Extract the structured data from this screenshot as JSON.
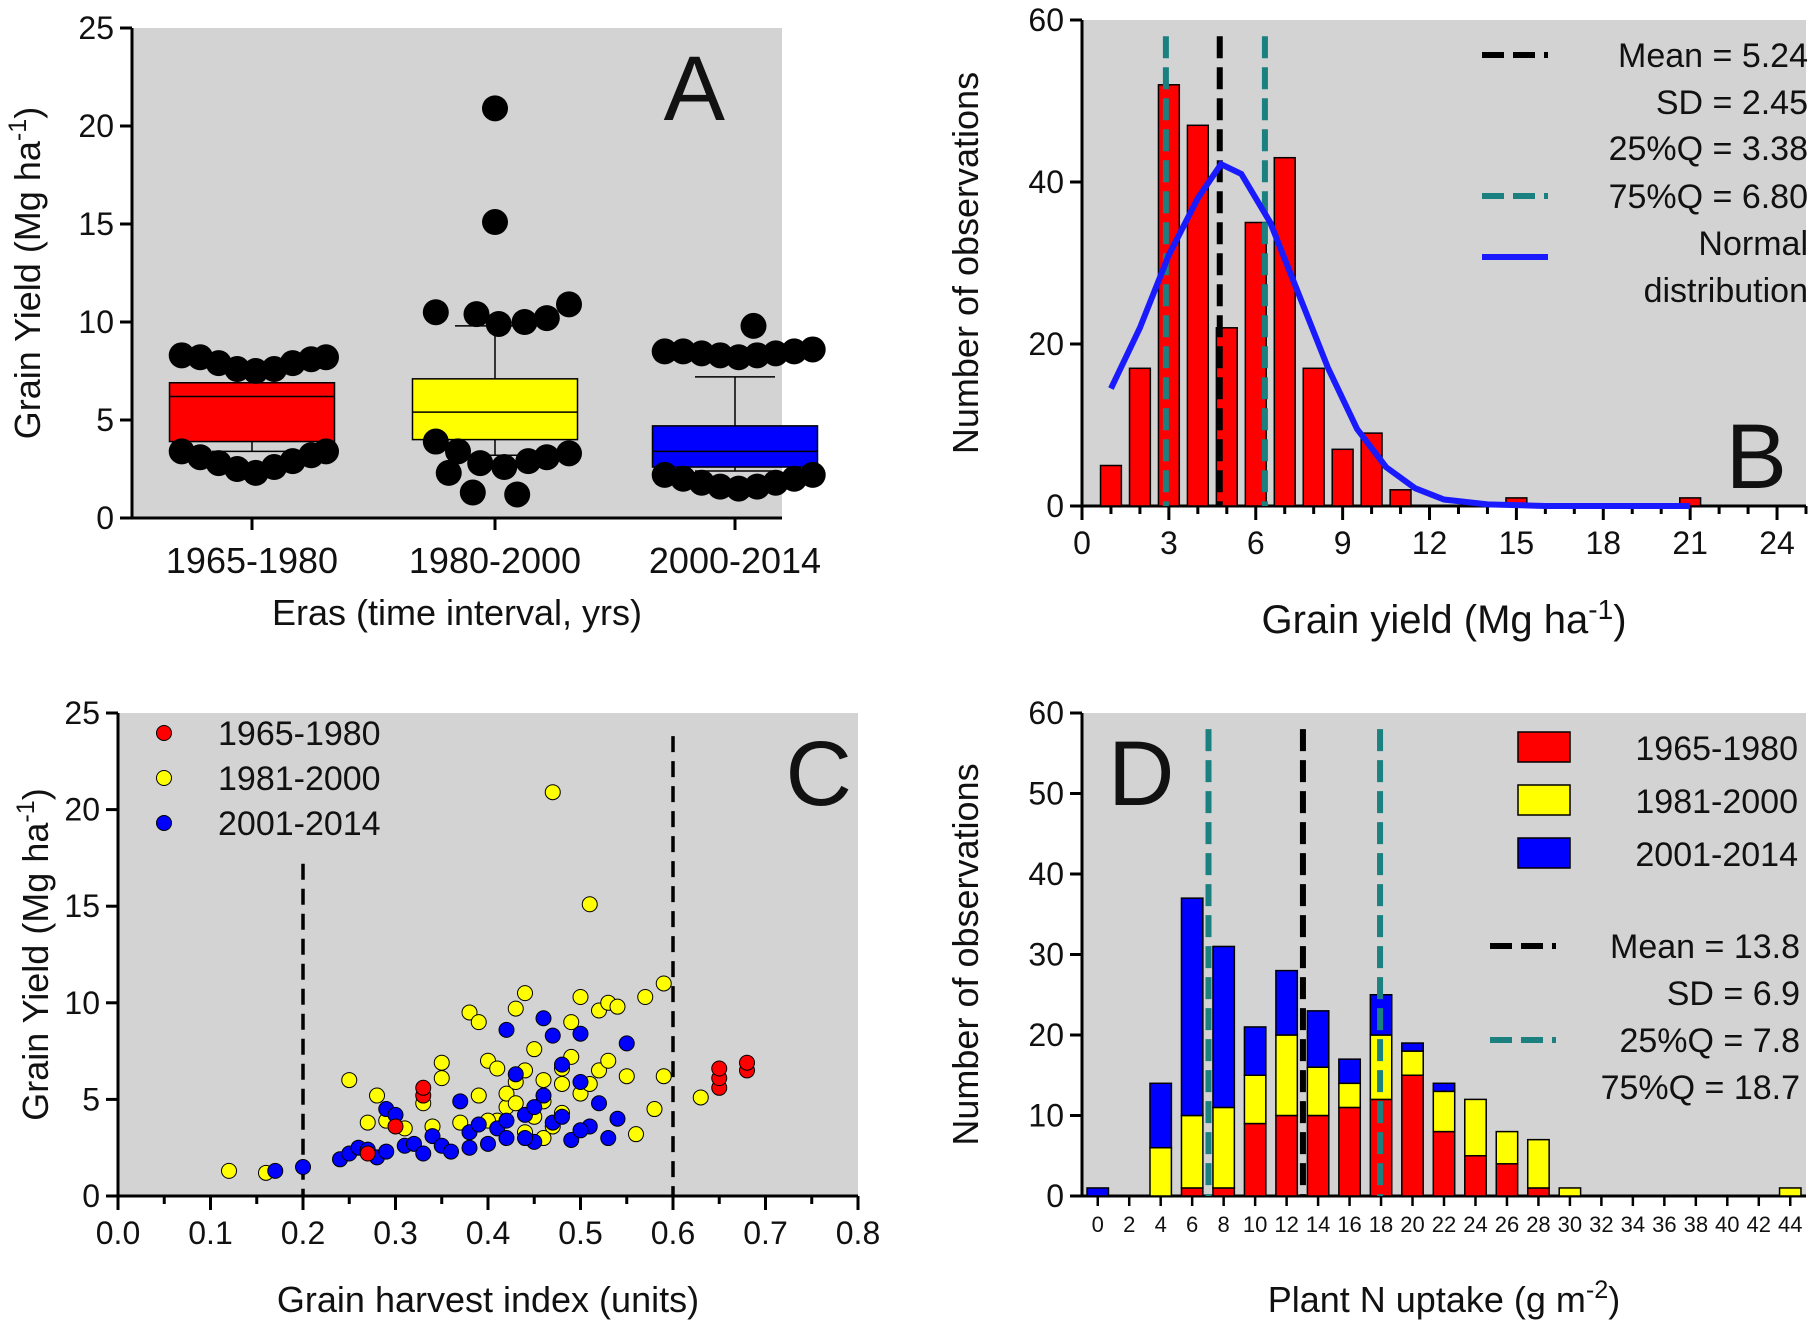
{
  "chart_data": [
    {
      "panel": "A",
      "type": "box",
      "xlabel": "Eras (time interval, yrs)",
      "ylabel": "Grain Yield (Mg ha",
      "ylabel_sup": "-1",
      "ylabel_tail": ")",
      "ylim": [
        0,
        25
      ],
      "yticks": [
        0,
        5,
        10,
        15,
        20,
        25
      ],
      "categories": [
        "1965-1980",
        "1980-2000",
        "2000-2014"
      ],
      "colors": [
        "#ff0000",
        "#ffff00",
        "#0000ff"
      ],
      "boxes": [
        {
          "q1": 3.9,
          "median": 6.2,
          "q3": 6.9,
          "whisker_low": 3.4,
          "whisker_high": 7.5
        },
        {
          "q1": 4.0,
          "median": 5.4,
          "q3": 7.1,
          "whisker_low": 3.2,
          "whisker_high": 9.8
        },
        {
          "q1": 2.6,
          "median": 3.4,
          "q3": 4.7,
          "whisker_low": 2.4,
          "whisker_high": 7.2
        }
      ],
      "outliers": [
        [
          [
            -0.38,
            8.3
          ],
          [
            -0.28,
            8.2
          ],
          [
            -0.18,
            7.9
          ],
          [
            -0.08,
            7.6
          ],
          [
            0.02,
            7.5
          ],
          [
            0.12,
            7.6
          ],
          [
            0.22,
            7.9
          ],
          [
            0.32,
            8.1
          ],
          [
            0.4,
            8.2
          ],
          [
            -0.38,
            3.4
          ],
          [
            -0.28,
            3.1
          ],
          [
            -0.18,
            2.8
          ],
          [
            -0.08,
            2.5
          ],
          [
            0.02,
            2.3
          ],
          [
            0.12,
            2.6
          ],
          [
            0.22,
            2.9
          ],
          [
            0.32,
            3.2
          ],
          [
            0.4,
            3.4
          ]
        ],
        [
          [
            -0.32,
            10.5
          ],
          [
            -0.1,
            10.4
          ],
          [
            0.02,
            9.9
          ],
          [
            0.16,
            10.0
          ],
          [
            0.28,
            10.2
          ],
          [
            0.4,
            10.9
          ],
          [
            0.0,
            20.9
          ],
          [
            0.0,
            15.1
          ],
          [
            -0.32,
            3.9
          ],
          [
            -0.2,
            3.4
          ],
          [
            -0.08,
            2.8
          ],
          [
            0.05,
            2.6
          ],
          [
            0.18,
            2.9
          ],
          [
            0.28,
            3.1
          ],
          [
            0.4,
            3.3
          ],
          [
            -0.25,
            2.3
          ],
          [
            -0.12,
            1.3
          ],
          [
            0.12,
            1.2
          ]
        ],
        [
          [
            -0.38,
            8.5
          ],
          [
            -0.28,
            8.5
          ],
          [
            -0.18,
            8.4
          ],
          [
            -0.08,
            8.3
          ],
          [
            0.02,
            8.2
          ],
          [
            0.12,
            8.3
          ],
          [
            0.22,
            8.4
          ],
          [
            0.32,
            8.5
          ],
          [
            0.42,
            8.6
          ],
          [
            0.1,
            9.8
          ],
          [
            -0.38,
            2.2
          ],
          [
            -0.28,
            2.0
          ],
          [
            -0.18,
            1.8
          ],
          [
            -0.08,
            1.6
          ],
          [
            0.02,
            1.5
          ],
          [
            0.12,
            1.6
          ],
          [
            0.22,
            1.8
          ],
          [
            0.32,
            2.0
          ],
          [
            0.42,
            2.2
          ]
        ]
      ],
      "letter": "A"
    },
    {
      "panel": "B",
      "type": "histogram",
      "xlabel": "Grain yield (Mg ha",
      "xlabel_sup": "-1",
      "xlabel_tail": ")",
      "ylabel": "Number of observations",
      "xlim": [
        0,
        25
      ],
      "ylim": [
        0,
        60
      ],
      "xticks": [
        0,
        3,
        6,
        9,
        12,
        15,
        18,
        21,
        24
      ],
      "yticks": [
        0,
        20,
        40,
        60
      ],
      "bins": [
        [
          1,
          5
        ],
        [
          2,
          17
        ],
        [
          3,
          52
        ],
        [
          4,
          47
        ],
        [
          5,
          22
        ],
        [
          6,
          35
        ],
        [
          7,
          43
        ],
        [
          8,
          17
        ],
        [
          9,
          7
        ],
        [
          10,
          9
        ],
        [
          11,
          2
        ],
        [
          15,
          1
        ],
        [
          21,
          1
        ]
      ],
      "mean": 5.24,
      "q25": 3.38,
      "q75": 6.8,
      "normal_curve": [
        [
          1,
          14.5
        ],
        [
          2,
          22
        ],
        [
          3,
          31
        ],
        [
          4,
          38
        ],
        [
          4.8,
          42.2
        ],
        [
          5.5,
          41
        ],
        [
          6.5,
          35
        ],
        [
          7.5,
          26
        ],
        [
          8.5,
          17
        ],
        [
          9.5,
          9.5
        ],
        [
          10.5,
          4.8
        ],
        [
          11.5,
          2.2
        ],
        [
          12.5,
          0.8
        ],
        [
          14,
          0.2
        ],
        [
          16,
          0
        ],
        [
          21,
          0
        ]
      ],
      "legend": [
        "Mean = 5.24",
        "SD = 2.45",
        "25%Q =  3.38",
        "75%Q =  6.80",
        "Normal",
        "distribution"
      ],
      "letter": "B"
    },
    {
      "panel": "C",
      "type": "scatter",
      "xlabel": "Grain harvest index (units)",
      "ylabel": "Grain Yield (Mg ha",
      "ylabel_sup": "-1",
      "ylabel_tail": ")",
      "xlim": [
        0,
        0.8
      ],
      "ylim": [
        0,
        25
      ],
      "xticks": [
        "0.0",
        "0.1",
        "0.2",
        "0.3",
        "0.4",
        "0.5",
        "0.6",
        "0.7",
        "0.8"
      ],
      "yticks": [
        0,
        5,
        10,
        15,
        20,
        25
      ],
      "vlines": [
        {
          "x": 0.2,
          "ymax": 17.2
        },
        {
          "x": 0.6,
          "ymax": 23.8
        }
      ],
      "series": [
        {
          "name": "1965-1980",
          "color": "#ff0000",
          "points": [
            [
              0.27,
              2.2
            ],
            [
              0.3,
              3.6
            ],
            [
              0.33,
              5.2
            ],
            [
              0.33,
              5.6
            ],
            [
              0.65,
              5.6
            ],
            [
              0.65,
              6.1
            ],
            [
              0.65,
              6.6
            ],
            [
              0.68,
              6.5
            ],
            [
              0.68,
              6.9
            ]
          ]
        },
        {
          "name": "1981-2000",
          "color": "#ffff00",
          "points": [
            [
              0.12,
              1.3
            ],
            [
              0.16,
              1.2
            ],
            [
              0.25,
              6.0
            ],
            [
              0.27,
              3.8
            ],
            [
              0.28,
              5.2
            ],
            [
              0.29,
              3.9
            ],
            [
              0.31,
              3.5
            ],
            [
              0.33,
              4.8
            ],
            [
              0.34,
              3.6
            ],
            [
              0.35,
              6.1
            ],
            [
              0.35,
              6.9
            ],
            [
              0.37,
              3.8
            ],
            [
              0.38,
              9.5
            ],
            [
              0.39,
              9.0
            ],
            [
              0.39,
              5.2
            ],
            [
              0.4,
              7.0
            ],
            [
              0.41,
              3.9
            ],
            [
              0.42,
              4.6
            ],
            [
              0.42,
              5.3
            ],
            [
              0.43,
              9.7
            ],
            [
              0.43,
              4.8
            ],
            [
              0.44,
              6.5
            ],
            [
              0.44,
              10.5
            ],
            [
              0.45,
              4.1
            ],
            [
              0.45,
              7.6
            ],
            [
              0.46,
              6.0
            ],
            [
              0.46,
              4.9
            ],
            [
              0.47,
              3.6
            ],
            [
              0.47,
              20.9
            ],
            [
              0.48,
              5.8
            ],
            [
              0.48,
              6.6
            ],
            [
              0.49,
              7.2
            ],
            [
              0.5,
              10.3
            ],
            [
              0.5,
              5.3
            ],
            [
              0.51,
              15.1
            ],
            [
              0.52,
              9.6
            ],
            [
              0.52,
              6.5
            ],
            [
              0.53,
              10.0
            ],
            [
              0.53,
              7.0
            ],
            [
              0.54,
              9.8
            ],
            [
              0.55,
              6.2
            ],
            [
              0.56,
              3.2
            ],
            [
              0.57,
              10.3
            ],
            [
              0.58,
              4.5
            ],
            [
              0.59,
              11.0
            ],
            [
              0.59,
              6.2
            ],
            [
              0.63,
              5.1
            ],
            [
              0.4,
              3.9
            ],
            [
              0.41,
              6.6
            ],
            [
              0.43,
              5.9
            ],
            [
              0.44,
              3.3
            ],
            [
              0.46,
              3.0
            ],
            [
              0.48,
              4.3
            ],
            [
              0.49,
              9.0
            ],
            [
              0.51,
              5.8
            ]
          ]
        },
        {
          "name": "2001-2014",
          "color": "#0000ff",
          "points": [
            [
              0.17,
              1.3
            ],
            [
              0.2,
              1.5
            ],
            [
              0.24,
              1.9
            ],
            [
              0.25,
              2.2
            ],
            [
              0.26,
              2.5
            ],
            [
              0.27,
              2.4
            ],
            [
              0.28,
              2.0
            ],
            [
              0.29,
              2.3
            ],
            [
              0.29,
              4.5
            ],
            [
              0.3,
              4.2
            ],
            [
              0.31,
              2.6
            ],
            [
              0.32,
              2.7
            ],
            [
              0.33,
              2.2
            ],
            [
              0.34,
              3.1
            ],
            [
              0.35,
              2.6
            ],
            [
              0.36,
              2.3
            ],
            [
              0.37,
              4.9
            ],
            [
              0.38,
              2.5
            ],
            [
              0.38,
              3.3
            ],
            [
              0.39,
              3.7
            ],
            [
              0.4,
              2.7
            ],
            [
              0.41,
              3.5
            ],
            [
              0.42,
              3.0
            ],
            [
              0.42,
              8.6
            ],
            [
              0.43,
              6.3
            ],
            [
              0.44,
              4.2
            ],
            [
              0.45,
              2.8
            ],
            [
              0.46,
              5.2
            ],
            [
              0.46,
              9.2
            ],
            [
              0.47,
              3.8
            ],
            [
              0.47,
              8.3
            ],
            [
              0.48,
              4.1
            ],
            [
              0.48,
              6.8
            ],
            [
              0.49,
              2.9
            ],
            [
              0.5,
              5.9
            ],
            [
              0.5,
              8.4
            ],
            [
              0.51,
              3.6
            ],
            [
              0.52,
              4.8
            ],
            [
              0.53,
              3.0
            ],
            [
              0.54,
              4.0
            ],
            [
              0.55,
              7.9
            ],
            [
              0.42,
              3.9
            ],
            [
              0.44,
              3.0
            ],
            [
              0.45,
              4.6
            ],
            [
              0.5,
              3.4
            ]
          ]
        }
      ],
      "legend": [
        "1965-1980",
        "1981-2000",
        "2001-2014"
      ],
      "letter": "C"
    },
    {
      "panel": "D",
      "type": "stacked-histogram",
      "xlabel": "Plant N uptake (g m",
      "xlabel_sup": "-2",
      "xlabel_tail": ")",
      "ylabel": "Number of observations",
      "xlim": [
        -1,
        45
      ],
      "ylim": [
        0,
        60
      ],
      "xticks": [
        0,
        2,
        4,
        6,
        8,
        10,
        12,
        14,
        16,
        18,
        20,
        22,
        24,
        26,
        28,
        30,
        32,
        34,
        36,
        38,
        40,
        42,
        44
      ],
      "yticks": [
        0,
        10,
        20,
        30,
        40,
        50,
        60
      ],
      "categories": [
        0,
        4,
        6,
        8,
        10,
        12,
        14,
        16,
        18,
        20,
        22,
        24,
        26,
        28,
        30,
        44
      ],
      "series": [
        {
          "name": "1965-1980",
          "color": "#ff0000",
          "values": [
            0,
            0,
            1,
            1,
            9,
            10,
            10,
            11,
            12,
            15,
            8,
            5,
            4,
            1,
            0,
            0
          ]
        },
        {
          "name": "1981-2000",
          "color": "#ffff00",
          "values": [
            0,
            6,
            9,
            10,
            6,
            10,
            6,
            3,
            8,
            3,
            5,
            7,
            4,
            6,
            1,
            1
          ]
        },
        {
          "name": "2001-2014",
          "color": "#0000ff",
          "values": [
            1,
            8,
            27,
            20,
            6,
            8,
            7,
            3,
            5,
            1,
            1,
            0,
            0,
            0,
            0,
            0
          ]
        }
      ],
      "mean": 13.8,
      "q25": 7.8,
      "q75": 18.7,
      "legend": [
        "1965-1980",
        "1981-2000",
        "2001-2014",
        "Mean = 13.8",
        "SD = 6.9",
        "25%Q =  7.8",
        "75%Q =  18.7"
      ],
      "letter": "D"
    }
  ]
}
